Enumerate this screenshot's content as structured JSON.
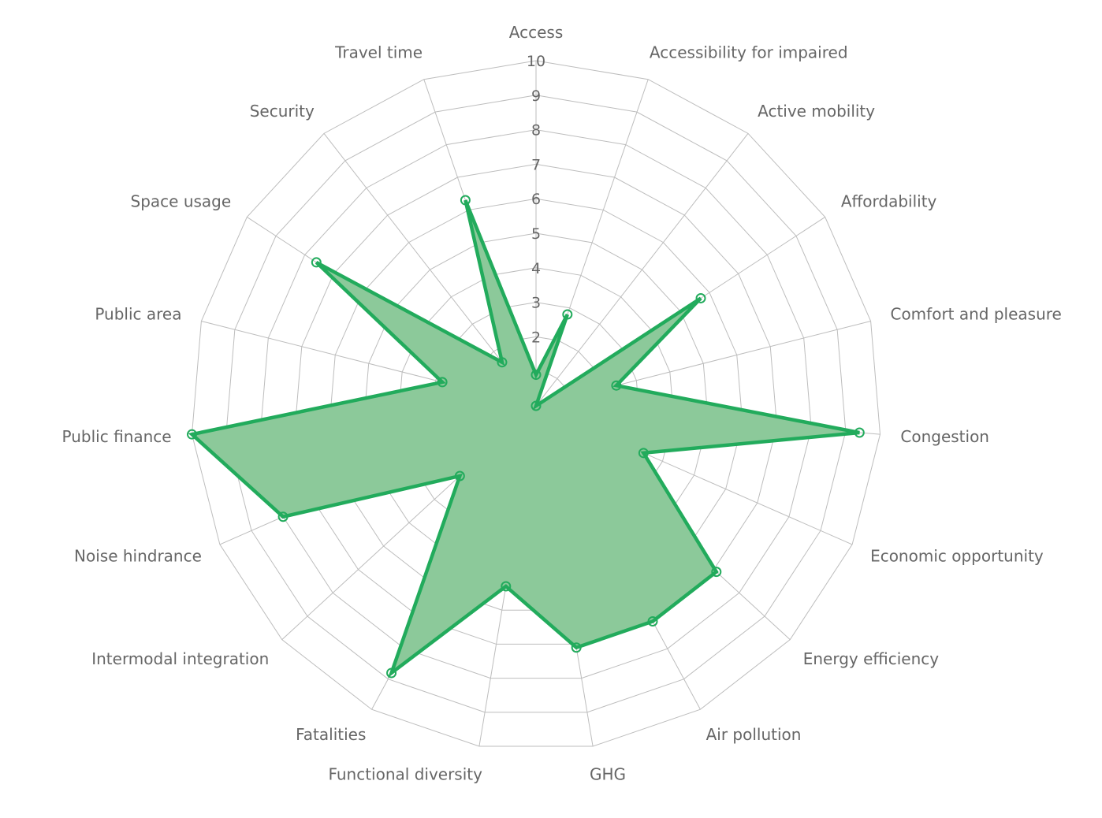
{
  "chart_data": {
    "type": "radar",
    "categories": [
      "Access",
      "Accessibility for impaired",
      "Active mobility",
      "Affordability",
      "Comfort and pleasure",
      "Congestion",
      "Economic opportunity",
      "Energy efficiency",
      "Air pollution",
      "GHG",
      "Functional diversity",
      "Fatalities",
      "Intermodal integration",
      "Noise hindrance",
      "Public finance",
      "Public area",
      "Space usage",
      "Security",
      "Travel time"
    ],
    "values": [
      0.9,
      2.8,
      0.0,
      5.7,
      2.4,
      9.4,
      3.4,
      7.1,
      7.1,
      7.1,
      5.3,
      8.8,
      3.0,
      8.0,
      10.0,
      2.8,
      7.6,
      1.6,
      6.3
    ],
    "rlim": [
      0,
      10
    ],
    "ticks": [
      "2",
      "3",
      "4",
      "5",
      "6",
      "7",
      "8",
      "9",
      "10"
    ],
    "grid": true,
    "legend": "none",
    "colors": {
      "line": "#22ab5c",
      "fill": "#8cc99a",
      "grid": "#bdbdbd",
      "text": "#666666"
    }
  }
}
